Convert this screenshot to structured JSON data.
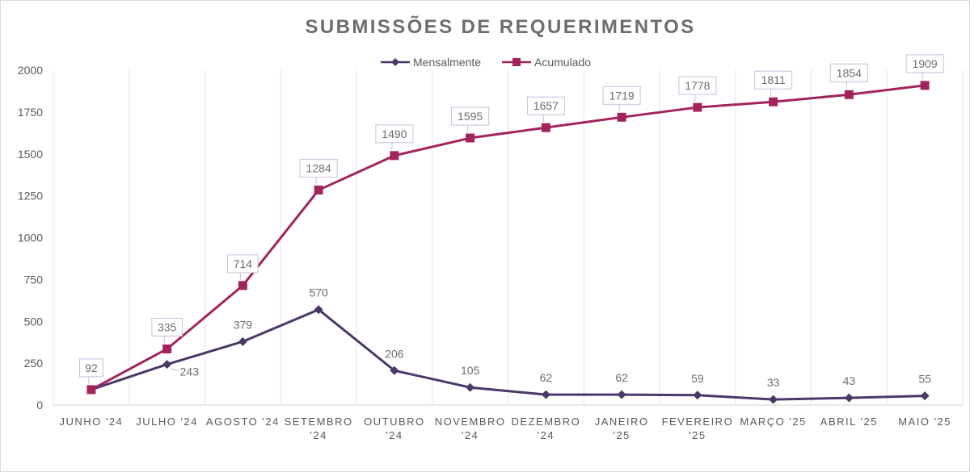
{
  "chart_data": {
    "type": "line",
    "title": "SUBMISSÕES DE REQUERIMENTOS",
    "categories": [
      [
        "JUNHO '24"
      ],
      [
        "JULHO '24"
      ],
      [
        "AGOSTO '24"
      ],
      [
        "SETEMBRO",
        "'24"
      ],
      [
        "OUTUBRO",
        "'24"
      ],
      [
        "NOVEMBRO",
        "'24"
      ],
      [
        "DEZEMBRO",
        "'24"
      ],
      [
        "JANEIRO",
        "'25"
      ],
      [
        "FEVEREIRO",
        "'25"
      ],
      [
        "MARÇO '25"
      ],
      [
        "ABRIL '25"
      ],
      [
        "MAIO '25"
      ]
    ],
    "series": [
      {
        "name": "Mensalmente",
        "color": "#4b3868",
        "marker": "diamond",
        "values": [
          92,
          243,
          379,
          570,
          206,
          105,
          62,
          62,
          59,
          33,
          43,
          55
        ]
      },
      {
        "name": "Acumulado",
        "color": "#a3245c",
        "marker": "square",
        "values": [
          92,
          335,
          714,
          1284,
          1490,
          1595,
          1657,
          1719,
          1778,
          1811,
          1854,
          1909
        ]
      }
    ],
    "ylim": [
      0,
      2000
    ],
    "yticks": [
      0,
      250,
      500,
      750,
      1000,
      1250,
      1500,
      1750,
      2000
    ],
    "grid": "vertical",
    "legend": "top-center"
  }
}
